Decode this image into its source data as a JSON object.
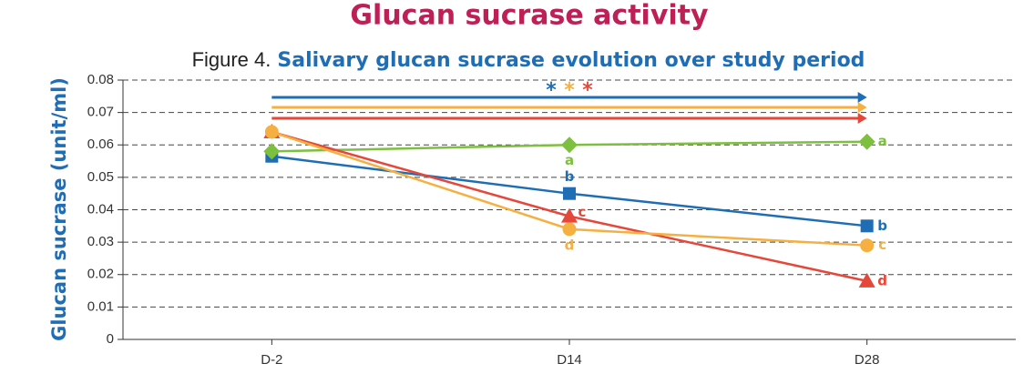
{
  "chart_data": {
    "type": "line",
    "title": "Glucan sucrase activity",
    "subtitle_prefix": "Figure 4.",
    "subtitle": "Salivary glucan sucrase evolution over study period",
    "y_label": "Glucan sucrase (unit/ml)",
    "categories": [
      "D-2",
      "D14",
      "D28"
    ],
    "ylim": [
      0,
      0.08
    ],
    "yticks": [
      0,
      0.01,
      0.02,
      0.03,
      0.04,
      0.05,
      0.06,
      0.07,
      0.08
    ],
    "grid": true,
    "series": [
      {
        "color": "#1f6db5",
        "marker": "square",
        "values": [
          0.0565,
          0.045,
          0.035
        ],
        "point_labels": [
          null,
          "b",
          "b"
        ]
      },
      {
        "color": "#7dbf3f",
        "marker": "diamond",
        "values": [
          0.058,
          0.06,
          0.061
        ],
        "point_labels": [
          null,
          "a",
          "a"
        ]
      },
      {
        "color": "#e5483a",
        "marker": "triangle",
        "values": [
          0.064,
          0.038,
          0.018
        ],
        "point_labels": [
          null,
          "c",
          "d"
        ]
      },
      {
        "color": "#f5b041",
        "marker": "circle",
        "values": [
          0.064,
          0.034,
          0.029
        ],
        "point_labels": [
          null,
          "d",
          "c"
        ]
      }
    ],
    "significance": [
      {
        "color": "#1f6db5",
        "mark": "*"
      },
      {
        "color": "#f5b041",
        "mark": "*"
      },
      {
        "color": "#e5483a",
        "mark": "*"
      }
    ]
  }
}
